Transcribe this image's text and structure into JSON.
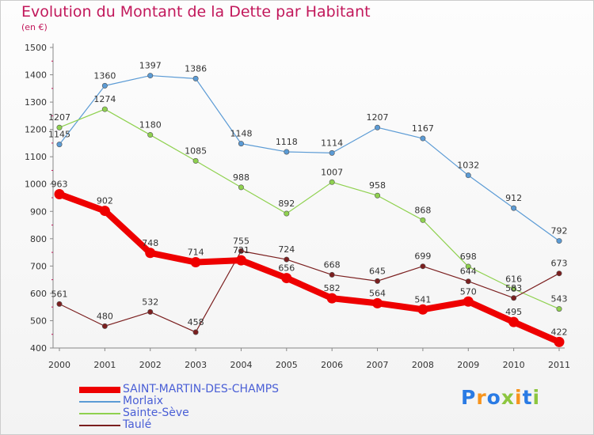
{
  "title": "Evolution du Montant de la Dette par Habitant",
  "unit_label": "(en €)",
  "logo": {
    "text": "Proxiti",
    "letter_colors": [
      "#2a7be4",
      "#f7941d",
      "#2a7be4",
      "#8dc63f",
      "#f7941d",
      "#2a7be4",
      "#8dc63f"
    ]
  },
  "chart_data": {
    "type": "line",
    "title": "Evolution du Montant de la Dette par Habitant",
    "ylabel": "(en €)",
    "xlabel": "",
    "x": [
      "2000",
      "2001",
      "2002",
      "2003",
      "2004",
      "2005",
      "2006",
      "2007",
      "2008",
      "2009",
      "2010",
      "2011"
    ],
    "ylim": [
      400,
      1500
    ],
    "yticks": [
      "400",
      "500",
      "600",
      "700",
      "800",
      "900",
      "1000",
      "1100",
      "1200",
      "1300",
      "1400",
      "1500"
    ],
    "grid": false,
    "legend_position": "bottom-left",
    "series": [
      {
        "name": "SAINT-MARTIN-DES-CHAMPS",
        "color": "#ee0000",
        "values": [
          963,
          902,
          748,
          714,
          721,
          656,
          582,
          564,
          541,
          570,
          495,
          422
        ],
        "labels": [
          "963",
          "902",
          "748",
          "714",
          "721",
          "656",
          "582",
          "564",
          "541",
          "570",
          "495",
          "422"
        ]
      },
      {
        "name": "Morlaix",
        "color": "#5b9bd5",
        "values": [
          1145,
          1360,
          1397,
          1386,
          1148,
          1118,
          1114,
          1207,
          1167,
          1032,
          912,
          792
        ],
        "labels": [
          "1145",
          "1360",
          "1397",
          "1386",
          "1148",
          "1118",
          "1114",
          "1207",
          "1167",
          "1032",
          "912",
          "792"
        ]
      },
      {
        "name": "Sainte-Sève",
        "color": "#8fd14f",
        "values": [
          1207,
          1274,
          1180,
          1085,
          988,
          892,
          1007,
          958,
          868,
          698,
          616,
          543
        ],
        "labels": [
          "1207",
          "1274",
          "1180",
          "1085",
          "988",
          "892",
          "1007",
          "958",
          "868",
          "698",
          "616",
          "543"
        ]
      },
      {
        "name": "Taulé",
        "color": "#7b1f1f",
        "values": [
          561,
          480,
          532,
          458,
          755,
          724,
          668,
          645,
          699,
          644,
          583,
          673
        ],
        "labels": [
          "561",
          "480",
          "532",
          "458",
          "755",
          "724",
          "668",
          "645",
          "699",
          "644",
          "583",
          "673"
        ]
      }
    ]
  }
}
